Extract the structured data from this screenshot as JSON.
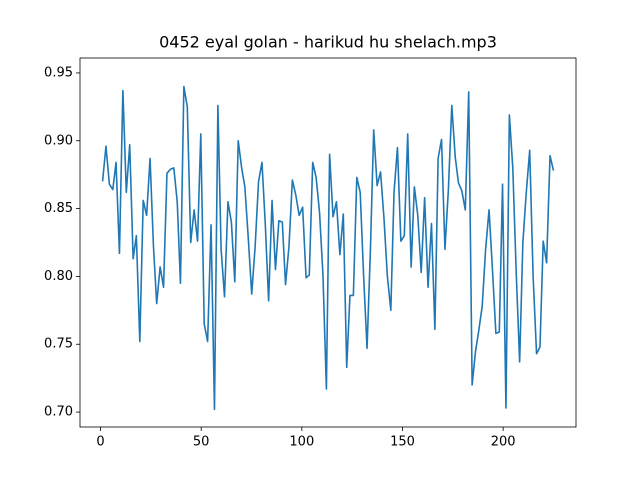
{
  "chart_data": {
    "type": "line",
    "title": "0452 eyal golan - harikud hu shelach.mp3",
    "x": [
      1.0,
      2.7,
      4.4,
      6.1,
      7.7,
      9.4,
      11.1,
      12.8,
      14.5,
      16.2,
      17.8,
      19.5,
      21.2,
      22.9,
      24.6,
      26.3,
      27.9,
      29.6,
      31.3,
      33.0,
      34.7,
      36.4,
      38.1,
      39.7,
      41.4,
      43.1,
      44.8,
      46.5,
      48.2,
      49.8,
      51.5,
      53.2,
      54.9,
      56.6,
      58.3,
      59.9,
      61.6,
      63.3,
      65.0,
      66.7,
      68.4,
      70.1,
      71.7,
      73.4,
      75.1,
      76.8,
      78.5,
      80.2,
      81.8,
      83.5,
      85.2,
      86.9,
      88.6,
      90.3,
      91.9,
      93.6,
      95.3,
      97.0,
      98.7,
      100.4,
      102.1,
      103.7,
      105.4,
      107.1,
      108.8,
      110.5,
      112.2,
      113.8,
      115.5,
      117.2,
      118.9,
      120.6,
      122.3,
      123.9,
      125.6,
      127.3,
      129.0,
      130.7,
      132.4,
      134.1,
      135.7,
      137.4,
      139.1,
      140.8,
      142.5,
      144.2,
      145.8,
      147.5,
      149.2,
      150.9,
      152.6,
      154.3,
      155.9,
      157.6,
      159.3,
      161.0,
      162.7,
      164.4,
      166.1,
      167.7,
      169.4,
      171.1,
      172.8,
      174.5,
      176.2,
      177.8,
      179.5,
      181.2,
      182.9,
      184.6,
      186.3,
      187.9,
      189.6,
      191.3,
      193.0,
      194.7,
      196.4,
      198.1,
      199.7,
      201.4,
      203.1,
      204.8,
      206.5,
      208.2,
      209.8,
      211.5,
      213.2,
      214.9,
      216.6,
      218.3,
      219.9,
      221.6,
      223.3,
      225.0
    ],
    "series": [
      {
        "color": "#1f77b4",
        "values": [
          0.87,
          0.896,
          0.868,
          0.864,
          0.884,
          0.817,
          0.937,
          0.862,
          0.897,
          0.813,
          0.83,
          0.752,
          0.856,
          0.845,
          0.887,
          0.822,
          0.78,
          0.807,
          0.792,
          0.876,
          0.879,
          0.88,
          0.855,
          0.795,
          0.94,
          0.925,
          0.825,
          0.849,
          0.826,
          0.905,
          0.765,
          0.752,
          0.838,
          0.702,
          0.926,
          0.82,
          0.785,
          0.855,
          0.84,
          0.796,
          0.9,
          0.88,
          0.866,
          0.828,
          0.787,
          0.822,
          0.87,
          0.884,
          0.84,
          0.782,
          0.856,
          0.805,
          0.841,
          0.84,
          0.794,
          0.822,
          0.871,
          0.86,
          0.845,
          0.851,
          0.799,
          0.801,
          0.884,
          0.873,
          0.847,
          0.801,
          0.717,
          0.89,
          0.844,
          0.855,
          0.816,
          0.846,
          0.733,
          0.786,
          0.786,
          0.873,
          0.862,
          0.8,
          0.747,
          0.821,
          0.908,
          0.867,
          0.877,
          0.843,
          0.8,
          0.775,
          0.862,
          0.895,
          0.826,
          0.83,
          0.905,
          0.807,
          0.866,
          0.845,
          0.803,
          0.858,
          0.792,
          0.839,
          0.761,
          0.887,
          0.901,
          0.82,
          0.864,
          0.926,
          0.888,
          0.869,
          0.863,
          0.849,
          0.936,
          0.72,
          0.745,
          0.76,
          0.778,
          0.82,
          0.849,
          0.805,
          0.758,
          0.759,
          0.868,
          0.703,
          0.919,
          0.88,
          0.803,
          0.737,
          0.825,
          0.862,
          0.893,
          0.8,
          0.743,
          0.748,
          0.826,
          0.81,
          0.889,
          0.878
        ]
      }
    ],
    "xlim": [
      -10.2,
      236.2
    ],
    "xticks": [
      0,
      50,
      100,
      150,
      200
    ],
    "ylim": [
      0.689,
      0.961
    ],
    "yticks": [
      {
        "value": 0.7,
        "label": "0.70"
      },
      0.75,
      {
        "value": 0.8,
        "label": "0.80"
      },
      0.85,
      {
        "value": 0.9,
        "label": "0.90"
      },
      0.95
    ]
  }
}
